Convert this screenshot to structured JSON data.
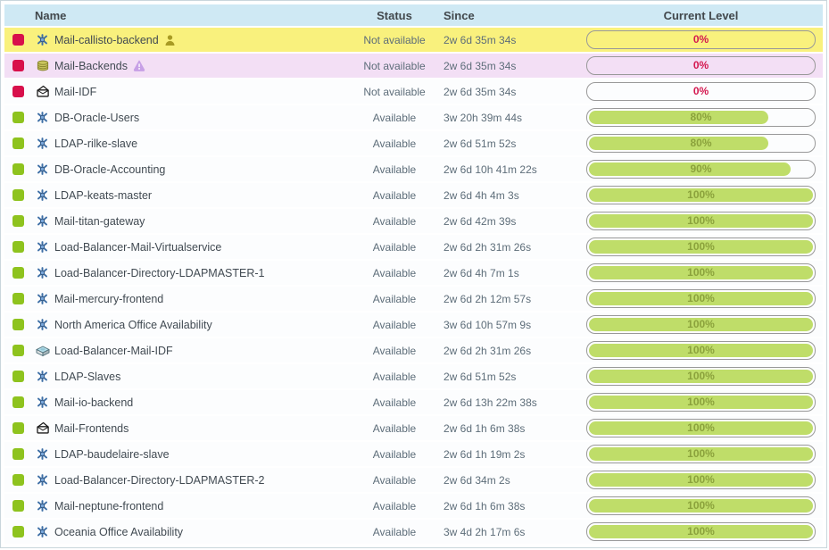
{
  "table": {
    "columns": {
      "name": "Name",
      "status": "Status",
      "since": "Since",
      "level": "Current Level"
    },
    "colors": {
      "header_bg": "#cfe9f4",
      "row_critical_bg": "#f9f17d",
      "row_warning_bg": "#f3dff5",
      "bar_fill_green": "#bfdd69",
      "bar_label_green": "#8ba23c",
      "bar_label_red": "#d41950",
      "indicator_red": "#d8104b",
      "indicator_green": "#8ec31e"
    },
    "rows": [
      {
        "name": "Mail-callisto-backend",
        "icon": "business-process-icon",
        "extra_icon": "person-icon",
        "indicator": "red",
        "status": "Not available",
        "since": "2w 6d 35m 34s",
        "level": 0,
        "level_label": "0%",
        "highlight": "critical"
      },
      {
        "name": "Mail-Backends",
        "icon": "database-icon",
        "extra_icon": "warning-icon",
        "indicator": "red",
        "status": "Not available",
        "since": "2w 6d 35m 34s",
        "level": 0,
        "level_label": "0%",
        "highlight": "warning"
      },
      {
        "name": "Mail-IDF",
        "icon": "mail-icon",
        "indicator": "red",
        "status": "Not available",
        "since": "2w 6d 35m 34s",
        "level": 0,
        "level_label": "0%",
        "highlight": "none"
      },
      {
        "name": "DB-Oracle-Users",
        "icon": "business-process-icon",
        "indicator": "green",
        "status": "Available",
        "since": "3w 20h 39m 44s",
        "level": 80,
        "level_label": "80%",
        "highlight": "none"
      },
      {
        "name": "LDAP-rilke-slave",
        "icon": "business-process-icon",
        "indicator": "green",
        "status": "Available",
        "since": "2w 6d 51m 52s",
        "level": 80,
        "level_label": "80%",
        "highlight": "none"
      },
      {
        "name": "DB-Oracle-Accounting",
        "icon": "business-process-icon",
        "indicator": "green",
        "status": "Available",
        "since": "2w 6d 10h 41m 22s",
        "level": 90,
        "level_label": "90%",
        "highlight": "none"
      },
      {
        "name": "LDAP-keats-master",
        "icon": "business-process-icon",
        "indicator": "green",
        "status": "Available",
        "since": "2w 6d 4h 4m 3s",
        "level": 100,
        "level_label": "100%",
        "highlight": "none"
      },
      {
        "name": "Mail-titan-gateway",
        "icon": "business-process-icon",
        "indicator": "green",
        "status": "Available",
        "since": "2w 6d 42m 39s",
        "level": 100,
        "level_label": "100%",
        "highlight": "none"
      },
      {
        "name": "Load-Balancer-Mail-Virtualservice",
        "icon": "business-process-icon",
        "indicator": "green",
        "status": "Available",
        "since": "2w 6d 2h 31m 26s",
        "level": 100,
        "level_label": "100%",
        "highlight": "none"
      },
      {
        "name": "Load-Balancer-Directory-LDAPMASTER-1",
        "icon": "business-process-icon",
        "indicator": "green",
        "status": "Available",
        "since": "2w 6d 4h 7m 1s",
        "level": 100,
        "level_label": "100%",
        "highlight": "none"
      },
      {
        "name": "Mail-mercury-frontend",
        "icon": "business-process-icon",
        "indicator": "green",
        "status": "Available",
        "since": "2w 6d 2h 12m 57s",
        "level": 100,
        "level_label": "100%",
        "highlight": "none"
      },
      {
        "name": "North America Office Availability",
        "icon": "business-process-icon",
        "indicator": "green",
        "status": "Available",
        "since": "3w 6d 10h 57m 9s",
        "level": 100,
        "level_label": "100%",
        "highlight": "none"
      },
      {
        "name": "Load-Balancer-Mail-IDF",
        "icon": "switch-icon",
        "indicator": "green",
        "status": "Available",
        "since": "2w 6d 2h 31m 26s",
        "level": 100,
        "level_label": "100%",
        "highlight": "none"
      },
      {
        "name": "LDAP-Slaves",
        "icon": "business-process-icon",
        "indicator": "green",
        "status": "Available",
        "since": "2w 6d 51m 52s",
        "level": 100,
        "level_label": "100%",
        "highlight": "none"
      },
      {
        "name": "Mail-io-backend",
        "icon": "business-process-icon",
        "indicator": "green",
        "status": "Available",
        "since": "2w 6d 13h 22m 38s",
        "level": 100,
        "level_label": "100%",
        "highlight": "none"
      },
      {
        "name": "Mail-Frontends",
        "icon": "mail-icon",
        "indicator": "green",
        "status": "Available",
        "since": "2w 6d 1h 6m 38s",
        "level": 100,
        "level_label": "100%",
        "highlight": "none"
      },
      {
        "name": "LDAP-baudelaire-slave",
        "icon": "business-process-icon",
        "indicator": "green",
        "status": "Available",
        "since": "2w 6d 1h 19m 2s",
        "level": 100,
        "level_label": "100%",
        "highlight": "none"
      },
      {
        "name": "Load-Balancer-Directory-LDAPMASTER-2",
        "icon": "business-process-icon",
        "indicator": "green",
        "status": "Available",
        "since": "2w 6d 34m 2s",
        "level": 100,
        "level_label": "100%",
        "highlight": "none"
      },
      {
        "name": "Mail-neptune-frontend",
        "icon": "business-process-icon",
        "indicator": "green",
        "status": "Available",
        "since": "2w 6d 1h 6m 38s",
        "level": 100,
        "level_label": "100%",
        "highlight": "none"
      },
      {
        "name": "Oceania Office Availability",
        "icon": "business-process-icon",
        "indicator": "green",
        "status": "Available",
        "since": "3w 4d 2h 17m 6s",
        "level": 100,
        "level_label": "100%",
        "highlight": "none"
      }
    ]
  }
}
